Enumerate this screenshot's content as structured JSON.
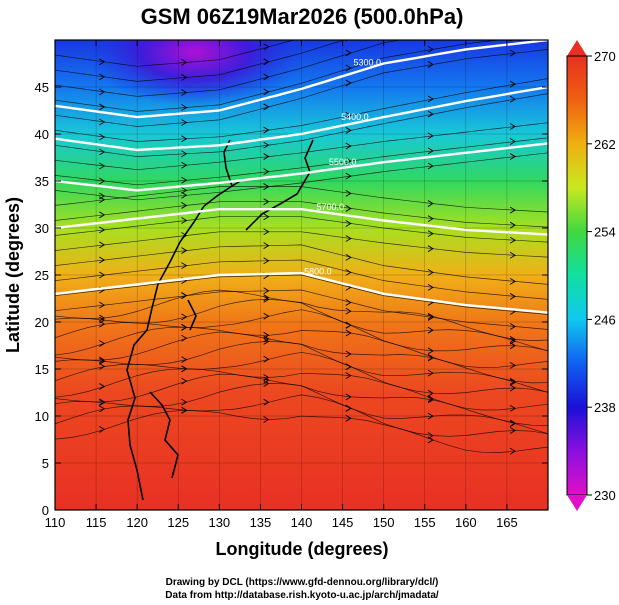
{
  "title": "GSM 06Z19Mar2026 (500.0hPa)",
  "xaxis": {
    "label": "Longitude (degrees)",
    "range": [
      110,
      170
    ],
    "ticks": [
      "110",
      "115",
      "120",
      "125",
      "130",
      "135",
      "140",
      "145",
      "150",
      "155",
      "160",
      "165"
    ]
  },
  "yaxis": {
    "label": "Latitude  (degrees)",
    "range": [
      0,
      50
    ],
    "ticks": [
      "0",
      "5",
      "10",
      "15",
      "20",
      "25",
      "30",
      "35",
      "40",
      "45"
    ]
  },
  "colorbar": {
    "ticks": [
      "230",
      "238",
      "246",
      "254",
      "262",
      "270"
    ],
    "min": 230,
    "max": 270,
    "colors": [
      "#e010c8",
      "#8a10e0",
      "#1a10d8",
      "#1060f0",
      "#10c8f0",
      "#10e0a0",
      "#40d840",
      "#c8e820",
      "#f0b010",
      "#f06010",
      "#e83020"
    ]
  },
  "contours": [
    {
      "label": "5300.0",
      "lat_at": [
        [
          110,
          43.0
        ],
        [
          120,
          41.8
        ],
        [
          130,
          42.5
        ],
        [
          140,
          44.8
        ],
        [
          150,
          47.5
        ],
        [
          160,
          49.0
        ],
        [
          170,
          50.0
        ]
      ]
    },
    {
      "label": "5400.0",
      "lat_at": [
        [
          110,
          39.5
        ],
        [
          120,
          38.3
        ],
        [
          130,
          38.8
        ],
        [
          140,
          40.0
        ],
        [
          150,
          41.8
        ],
        [
          160,
          43.5
        ],
        [
          170,
          45.0
        ]
      ]
    },
    {
      "label": "5500.0",
      "lat_at": [
        [
          110,
          35.0
        ],
        [
          120,
          34.0
        ],
        [
          130,
          34.8
        ],
        [
          140,
          35.8
        ],
        [
          150,
          37.0
        ],
        [
          160,
          38.0
        ],
        [
          170,
          39.0
        ]
      ]
    },
    {
      "label": "5700.0",
      "lat_at": [
        [
          110,
          30.0
        ],
        [
          120,
          31.0
        ],
        [
          130,
          32.0
        ],
        [
          140,
          32.0
        ],
        [
          150,
          30.8
        ],
        [
          160,
          29.8
        ],
        [
          170,
          29.3
        ]
      ]
    },
    {
      "label": "5800.0",
      "lat_at": [
        [
          110,
          23.0
        ],
        [
          120,
          24.0
        ],
        [
          130,
          25.0
        ],
        [
          140,
          25.2
        ],
        [
          150,
          23.0
        ],
        [
          160,
          21.8
        ],
        [
          170,
          21.0
        ]
      ]
    }
  ],
  "credit": [
    "Drawing by DCL (https://www.gfd-dennou.org/library/dcl/)",
    "Data from http://database.rish.kyoto-u.ac.jp/arch/jmadata/"
  ]
}
